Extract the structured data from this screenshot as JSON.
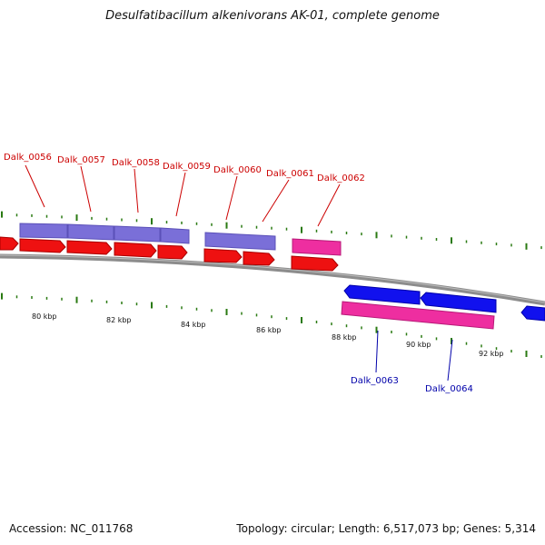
{
  "title": "Desulfatibacillum alkenivorans AK-01, complete genome",
  "footer": {
    "accession": "Accession: NC_011768",
    "summary": "Topology: circular; Length: 6,517,073 bp; Genes: 5,314"
  },
  "colors": {
    "forward_gene": "#ee1111",
    "reverse_gene": "#1111ee",
    "feature_purple": "#7a6fd8",
    "feature_pink": "#ee2ea0",
    "tick": "#2a7a12",
    "backbone": "#8c8c8c",
    "label_red": "#cc0000",
    "label_blue": "#0000aa"
  },
  "kbp_labels": [
    "80 kbp",
    "82 kbp",
    "84 kbp",
    "86 kbp",
    "88 kbp",
    "90 kbp",
    "92 kbp"
  ],
  "labels_top": [
    "Dalk_0056",
    "Dalk_0057",
    "Dalk_0058",
    "Dalk_0059",
    "Dalk_0060",
    "Dalk_0061",
    "Dalk_0062"
  ],
  "labels_bottom": [
    "Dalk_0063",
    "Dalk_0064"
  ]
}
